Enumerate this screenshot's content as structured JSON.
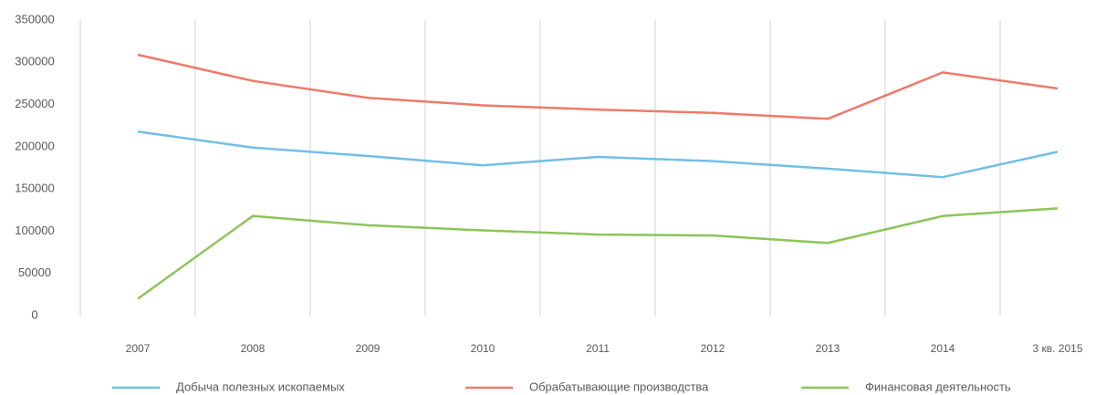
{
  "chart_data": {
    "type": "line",
    "categories": [
      "2007",
      "2008",
      "2009",
      "2010",
      "2011",
      "2012",
      "2013",
      "2014",
      "3 кв. 2015"
    ],
    "series": [
      {
        "name": "Добыча полезных ископаемых",
        "color": "#71bfe6",
        "values": [
          218000,
          199000,
          189000,
          178000,
          188000,
          183000,
          174000,
          164000,
          194000
        ]
      },
      {
        "name": "Обрабатывающие производства",
        "color": "#ef7a6b",
        "values": [
          309000,
          278000,
          258000,
          249000,
          244000,
          240000,
          233000,
          288000,
          269000
        ]
      },
      {
        "name": "Финансовая деятельность",
        "color": "#8cc559",
        "values": [
          20000,
          118000,
          107000,
          101000,
          96000,
          95000,
          86000,
          118000,
          127000
        ]
      }
    ],
    "ylim": [
      0,
      350000
    ],
    "yticks": [
      0,
      50000,
      100000,
      150000,
      200000,
      250000,
      300000,
      350000
    ],
    "category_separators": true,
    "legend": "bottom"
  }
}
